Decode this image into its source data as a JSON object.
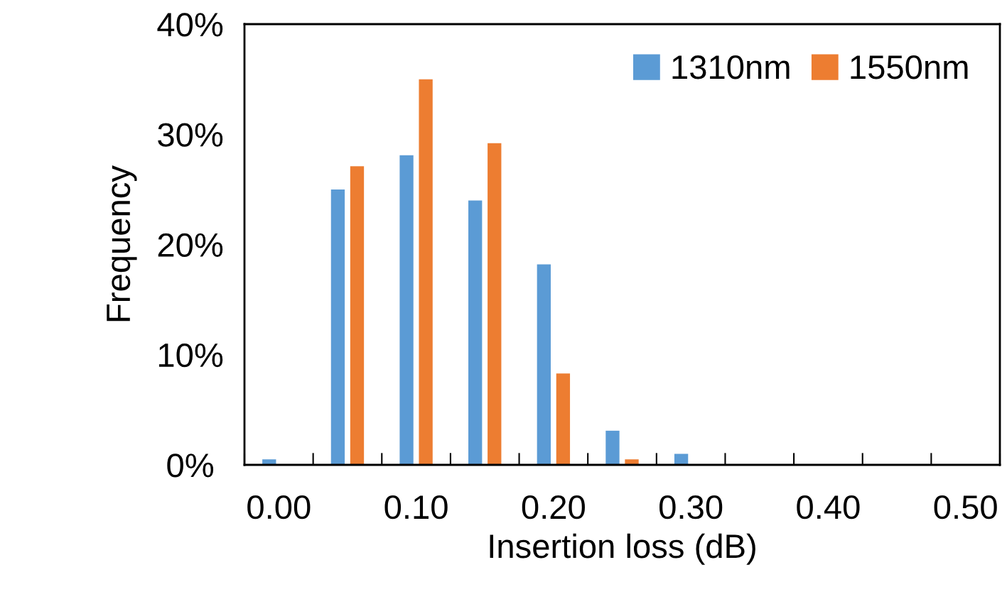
{
  "chart_data": {
    "type": "bar",
    "xlabel": "Insertion loss (dB)",
    "ylabel": "Frequency",
    "categories": [
      "0.00",
      null,
      "0.10",
      null,
      "0.20",
      null,
      "0.30",
      null,
      "0.40",
      null,
      "0.50"
    ],
    "series": [
      {
        "name": "1310nm",
        "color": "#5b9bd5",
        "values": [
          0.5,
          25,
          28.1,
          24,
          18.2,
          3.1,
          1.0,
          0,
          0,
          0,
          0
        ]
      },
      {
        "name": "1550nm",
        "color": "#ed7d31",
        "values": [
          0,
          27.1,
          35,
          29.2,
          8.3,
          0.5,
          0,
          0,
          0,
          0,
          0
        ]
      }
    ],
    "ylim": [
      0,
      40
    ],
    "yticks": [
      {
        "value": 0,
        "label": "0%"
      },
      {
        "value": 10,
        "label": "10%"
      },
      {
        "value": 20,
        "label": "20%"
      },
      {
        "value": 30,
        "label": "30%"
      },
      {
        "value": 40,
        "label": "40%"
      }
    ],
    "legend": "top right",
    "grid": false
  }
}
